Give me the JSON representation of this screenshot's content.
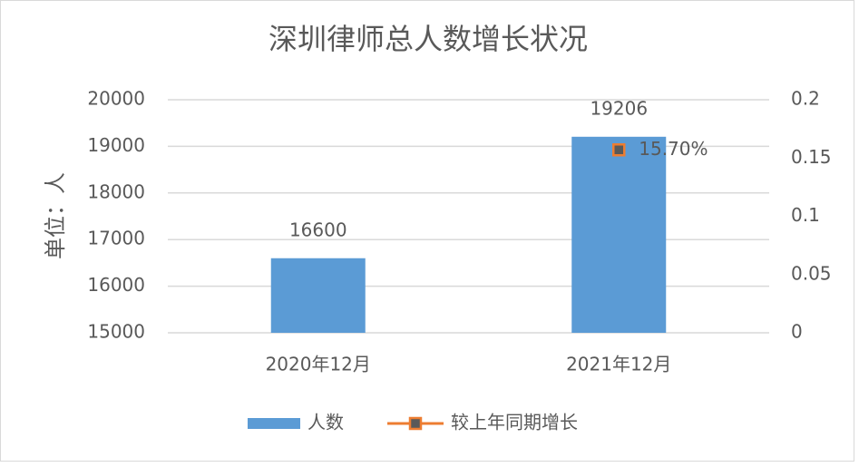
{
  "chart_data": {
    "type": "bar",
    "title": "深圳律师总人数增长状况",
    "y_label": "单位：人",
    "categories": [
      "2020年12月",
      "2021年12月"
    ],
    "series": [
      {
        "name": "人数",
        "type": "bar",
        "color": "#5b9bd5",
        "values": [
          16600,
          19206
        ]
      },
      {
        "name": "较上年同期增长",
        "type": "line",
        "axis": "y2",
        "color": "#ed7d31",
        "marker_color": "#595959",
        "values": [
          null,
          0.157
        ],
        "value_labels": [
          null,
          "15.70%"
        ]
      }
    ],
    "ylim": [
      15000,
      20000
    ],
    "yticks": [
      15000,
      16000,
      17000,
      18000,
      19000,
      20000
    ],
    "y2lim": [
      0,
      0.2
    ],
    "y2ticks": [
      0,
      0.05,
      0.1,
      0.15,
      0.2
    ],
    "grid": true,
    "legend": "bottom"
  }
}
